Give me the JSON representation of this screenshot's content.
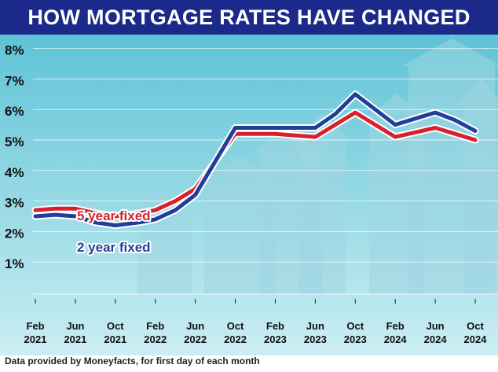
{
  "title": "HOW MORTGAGE RATES HAVE CHANGED",
  "source_note": "Data provided by Moneyfacts, for first day of each month",
  "colors": {
    "title_bg": "#1b2a8a",
    "two_year": "#1f3f99",
    "five_year": "#d8202e",
    "sky_top": "#5fc3d6",
    "sky_bottom": "#cbeef3"
  },
  "chart_data": {
    "type": "line",
    "title": "HOW MORTGAGE RATES HAVE CHANGED",
    "xlabel": "",
    "ylabel": "",
    "ylim": [
      0,
      8
    ],
    "y_ticks": [
      "1%",
      "2%",
      "3%",
      "4%",
      "5%",
      "6%",
      "7%",
      "8%"
    ],
    "categories": [
      [
        "Feb",
        "2021"
      ],
      [
        "Jun",
        "2021"
      ],
      [
        "Oct",
        "2021"
      ],
      [
        "Feb",
        "2022"
      ],
      [
        "Jun",
        "2022"
      ],
      [
        "Oct",
        "2022"
      ],
      [
        "Feb",
        "2023"
      ],
      [
        "Jun",
        "2023"
      ],
      [
        "Oct",
        "2023"
      ],
      [
        "Feb",
        "2024"
      ],
      [
        "Jun",
        "2024"
      ],
      [
        "Oct",
        "2024"
      ]
    ],
    "series": [
      {
        "name": "2 year fixed",
        "label": "2 year fixed",
        "color": "#1f3f99",
        "x": [
          0,
          0.5,
          1,
          1.5,
          2,
          2.3,
          2.6,
          3,
          3.5,
          4,
          4.5,
          5,
          5.5,
          6,
          6.5,
          7,
          7.5,
          8,
          8.5,
          9,
          9.5,
          10,
          10.5,
          11
        ],
        "values": [
          2.5,
          2.55,
          2.5,
          2.3,
          2.2,
          2.25,
          2.3,
          2.4,
          2.7,
          3.2,
          4.3,
          5.4,
          5.4,
          5.4,
          5.4,
          5.4,
          5.85,
          6.5,
          6.0,
          5.5,
          5.7,
          5.9,
          5.65,
          5.3
        ]
      },
      {
        "name": "5 year fixed",
        "label": "5 year fixed",
        "color": "#d8202e",
        "x": [
          0,
          0.5,
          1,
          1.5,
          2,
          2.3,
          2.6,
          3,
          3.5,
          4,
          4.5,
          5,
          5.5,
          6,
          6.5,
          7,
          7.5,
          8,
          8.5,
          9,
          9.5,
          10,
          10.5,
          11
        ],
        "values": [
          2.7,
          2.75,
          2.75,
          2.6,
          2.5,
          2.55,
          2.6,
          2.7,
          3.0,
          3.4,
          4.3,
          5.2,
          5.2,
          5.2,
          5.15,
          5.1,
          5.5,
          5.9,
          5.5,
          5.1,
          5.25,
          5.4,
          5.2,
          5.0
        ]
      }
    ],
    "grid": true
  }
}
